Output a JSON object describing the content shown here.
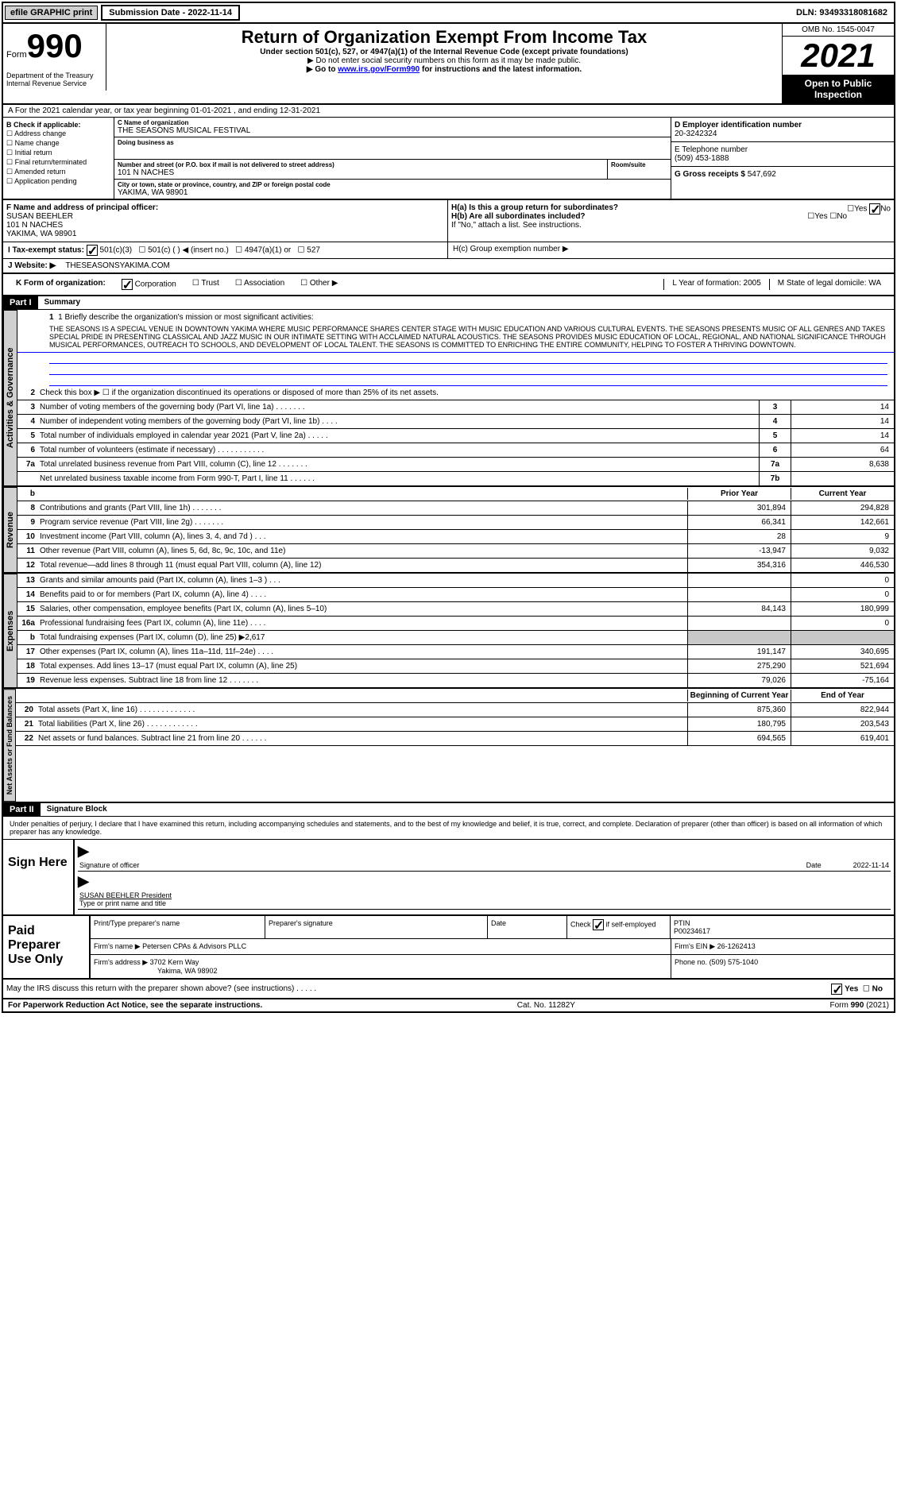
{
  "topbar": {
    "efile": "efile GRAPHIC print",
    "submission": "Submission Date - 2022-11-14",
    "dln": "DLN: 93493318081682"
  },
  "header": {
    "form_word": "Form",
    "form_num": "990",
    "title": "Return of Organization Exempt From Income Tax",
    "sub1": "Under section 501(c), 527, or 4947(a)(1) of the Internal Revenue Code (except private foundations)",
    "sub2": "▶ Do not enter social security numbers on this form as it may be made public.",
    "sub3": "▶ Go to www.irs.gov/Form990 for instructions and the latest information.",
    "link": "www.irs.gov/Form990",
    "dept": "Department of the Treasury Internal Revenue Service",
    "omb": "OMB No. 1545-0047",
    "year": "2021",
    "open": "Open to Public Inspection"
  },
  "rowA": "A For the 2021 calendar year, or tax year beginning 01-01-2021   , and ending 12-31-2021",
  "sectionB": {
    "label": "B Check if applicable:",
    "opts": [
      "Address change",
      "Name change",
      "Initial return",
      "Final return/terminated",
      "Amended return",
      "Application pending"
    ]
  },
  "sectionC": {
    "name_label": "C Name of organization",
    "name": "THE SEASONS MUSICAL FESTIVAL",
    "dba_label": "Doing business as",
    "dba": "",
    "addr_label": "Number and street (or P.O. box if mail is not delivered to street address)",
    "addr": "101 N NACHES",
    "room_label": "Room/suite",
    "city_label": "City or town, state or province, country, and ZIP or foreign postal code",
    "city": "YAKIMA, WA  98901"
  },
  "sectionD": {
    "label": "D Employer identification number",
    "val": "20-3242324"
  },
  "sectionE": {
    "label": "E Telephone number",
    "val": "(509) 453-1888"
  },
  "sectionG": {
    "label": "G Gross receipts $",
    "val": "547,692"
  },
  "sectionF": {
    "label": "F  Name and address of principal officer:",
    "name": "SUSAN BEEHLER",
    "addr": "101 N NACHES",
    "city": "YAKIMA, WA  98901"
  },
  "sectionH": {
    "a": "H(a)  Is this a group return for subordinates?",
    "b": "H(b)  Are all subordinates included?",
    "note": "If \"No,\" attach a list. See instructions.",
    "c": "H(c)  Group exemption number ▶",
    "yes": "Yes",
    "no": "No"
  },
  "rowI": {
    "label": "I   Tax-exempt status:",
    "opts": [
      "501(c)(3)",
      "501(c) (  ) ◀ (insert no.)",
      "4947(a)(1) or",
      "527"
    ]
  },
  "rowJ": {
    "label": "J   Website: ▶",
    "val": "THESEASONSYAKIMA.COM"
  },
  "rowK": {
    "label": "K Form of organization:",
    "opts": [
      "Corporation",
      "Trust",
      "Association",
      "Other ▶"
    ],
    "L": "L Year of formation: 2005",
    "M": "M State of legal domicile: WA"
  },
  "part1": {
    "header": "Part I",
    "title": "Summary",
    "line1_label": "1   Briefly describe the organization's mission or most significant activities:",
    "mission": "THE SEASONS IS A SPECIAL VENUE IN DOWNTOWN YAKIMA WHERE MUSIC PERFORMANCE SHARES CENTER STAGE WITH MUSIC EDUCATION AND VARIOUS CULTURAL EVENTS. THE SEASONS PRESENTS MUSIC OF ALL GENRES AND TAKES SPECIAL PRIDE IN PRESENTING CLASSICAL AND JAZZ MUSIC IN OUR INTIMATE SETTING WITH ACCLAIMED NATURAL ACOUSTICS. THE SEASONS PROVIDES MUSIC EDUCATION OF LOCAL, REGIONAL, AND NATIONAL SIGNIFICANCE THROUGH MUSICAL PERFORMANCES, OUTREACH TO SCHOOLS, AND DEVELOPMENT OF LOCAL TALENT. THE SEASONS IS COMMITTED TO ENRICHING THE ENTIRE COMMUNITY, HELPING TO FOSTER A THRIVING DOWNTOWN.",
    "line2": "Check this box ▶ ☐ if the organization discontinued its operations or disposed of more than 25% of its net assets.",
    "tabs": {
      "ag": "Activities & Governance",
      "rev": "Revenue",
      "exp": "Expenses",
      "net": "Net Assets or Fund Balances"
    },
    "col_prior": "Prior Year",
    "col_current": "Current Year",
    "col_begin": "Beginning of Current Year",
    "col_end": "End of Year",
    "lines_ag": [
      {
        "n": "3",
        "t": "Number of voting members of the governing body (Part VI, line 1a)  .    .    .    .    .    .    .",
        "b": "3",
        "v": "14"
      },
      {
        "n": "4",
        "t": "Number of independent voting members of the governing body (Part VI, line 1b)  .    .    .    .",
        "b": "4",
        "v": "14"
      },
      {
        "n": "5",
        "t": "Total number of individuals employed in calendar year 2021 (Part V, line 2a)  .    .    .    .    .",
        "b": "5",
        "v": "14"
      },
      {
        "n": "6",
        "t": "Total number of volunteers (estimate if necessary)  .    .    .    .    .    .    .    .    .    .    .",
        "b": "6",
        "v": "64"
      },
      {
        "n": "7a",
        "t": "Total unrelated business revenue from Part VIII, column (C), line 12  .    .    .    .    .    .    .",
        "b": "7a",
        "v": "8,638"
      },
      {
        "n": "",
        "t": "Net unrelated business taxable income from Form 990-T, Part I, line 11  .    .    .    .    .    .",
        "b": "7b",
        "v": ""
      }
    ],
    "lines_rev": [
      {
        "n": "8",
        "t": "Contributions and grants (Part VIII, line 1h)  .    .    .    .    .    .    .",
        "p": "301,894",
        "c": "294,828"
      },
      {
        "n": "9",
        "t": "Program service revenue (Part VIII, line 2g)  .    .    .    .    .    .    .",
        "p": "66,341",
        "c": "142,661"
      },
      {
        "n": "10",
        "t": "Investment income (Part VIII, column (A), lines 3, 4, and 7d )  .    .    .",
        "p": "28",
        "c": "9"
      },
      {
        "n": "11",
        "t": "Other revenue (Part VIII, column (A), lines 5, 6d, 8c, 9c, 10c, and 11e)",
        "p": "-13,947",
        "c": "9,032"
      },
      {
        "n": "12",
        "t": "Total revenue—add lines 8 through 11 (must equal Part VIII, column (A), line 12)",
        "p": "354,316",
        "c": "446,530"
      }
    ],
    "lines_exp": [
      {
        "n": "13",
        "t": "Grants and similar amounts paid (Part IX, column (A), lines 1–3 )  .    .    .",
        "p": "",
        "c": "0"
      },
      {
        "n": "14",
        "t": "Benefits paid to or for members (Part IX, column (A), line 4)  .    .    .    .",
        "p": "",
        "c": "0"
      },
      {
        "n": "15",
        "t": "Salaries, other compensation, employee benefits (Part IX, column (A), lines 5–10)",
        "p": "84,143",
        "c": "180,999"
      },
      {
        "n": "16a",
        "t": "Professional fundraising fees (Part IX, column (A), line 11e)  .    .    .    .",
        "p": "",
        "c": "0"
      },
      {
        "n": "b",
        "t": "Total fundraising expenses (Part IX, column (D), line 25) ▶2,617",
        "p": "",
        "c": "",
        "shaded": true
      },
      {
        "n": "17",
        "t": "Other expenses (Part IX, column (A), lines 11a–11d, 11f–24e)  .    .    .    .",
        "p": "191,147",
        "c": "340,695"
      },
      {
        "n": "18",
        "t": "Total expenses. Add lines 13–17 (must equal Part IX, column (A), line 25)",
        "p": "275,290",
        "c": "521,694"
      },
      {
        "n": "19",
        "t": "Revenue less expenses. Subtract line 18 from line 12  .    .    .    .    .    .    .",
        "p": "79,026",
        "c": "-75,164"
      }
    ],
    "lines_net": [
      {
        "n": "20",
        "t": "Total assets (Part X, line 16)  .    .    .    .    .    .    .    .    .    .    .    .    .",
        "p": "875,360",
        "c": "822,944"
      },
      {
        "n": "21",
        "t": "Total liabilities (Part X, line 26)  .    .    .    .    .    .    .    .    .    .    .    .",
        "p": "180,795",
        "c": "203,543"
      },
      {
        "n": "22",
        "t": "Net assets or fund balances. Subtract line 21 from line 20  .    .    .    .    .    .",
        "p": "694,565",
        "c": "619,401"
      }
    ]
  },
  "part2": {
    "header": "Part II",
    "title": "Signature Block",
    "decl": "Under penalties of perjury, I declare that I have examined this return, including accompanying schedules and statements, and to the best of my knowledge and belief, it is true, correct, and complete. Declaration of preparer (other than officer) is based on all information of which preparer has any knowledge.",
    "sign_here": "Sign Here",
    "sig_officer": "Signature of officer",
    "sig_date": "Date",
    "sig_date_val": "2022-11-14",
    "sig_name": "SUSAN BEEHLER  President",
    "sig_name_label": "Type or print name and title",
    "paid": "Paid Preparer Use Only",
    "prep_name_label": "Print/Type preparer's name",
    "prep_sig_label": "Preparer's signature",
    "prep_date_label": "Date",
    "prep_check": "Check ☑ if self-employed",
    "ptin_label": "PTIN",
    "ptin": "P00234617",
    "firm_name_label": "Firm's name     ▶",
    "firm_name": "Petersen CPAs & Advisors PLLC",
    "firm_ein_label": "Firm's EIN ▶",
    "firm_ein": "26-1262413",
    "firm_addr_label": "Firm's address ▶",
    "firm_addr": "3702 Kern Way",
    "firm_city": "Yakima, WA  98902",
    "phone_label": "Phone no.",
    "phone": "(509) 575-1040",
    "discuss": "May the IRS discuss this return with the preparer shown above? (see instructions)  .    .    .    .    .",
    "yes": "Yes",
    "no": "No"
  },
  "footer": {
    "left": "For Paperwork Reduction Act Notice, see the separate instructions.",
    "mid": "Cat. No. 11282Y",
    "right": "Form 990 (2021)"
  }
}
